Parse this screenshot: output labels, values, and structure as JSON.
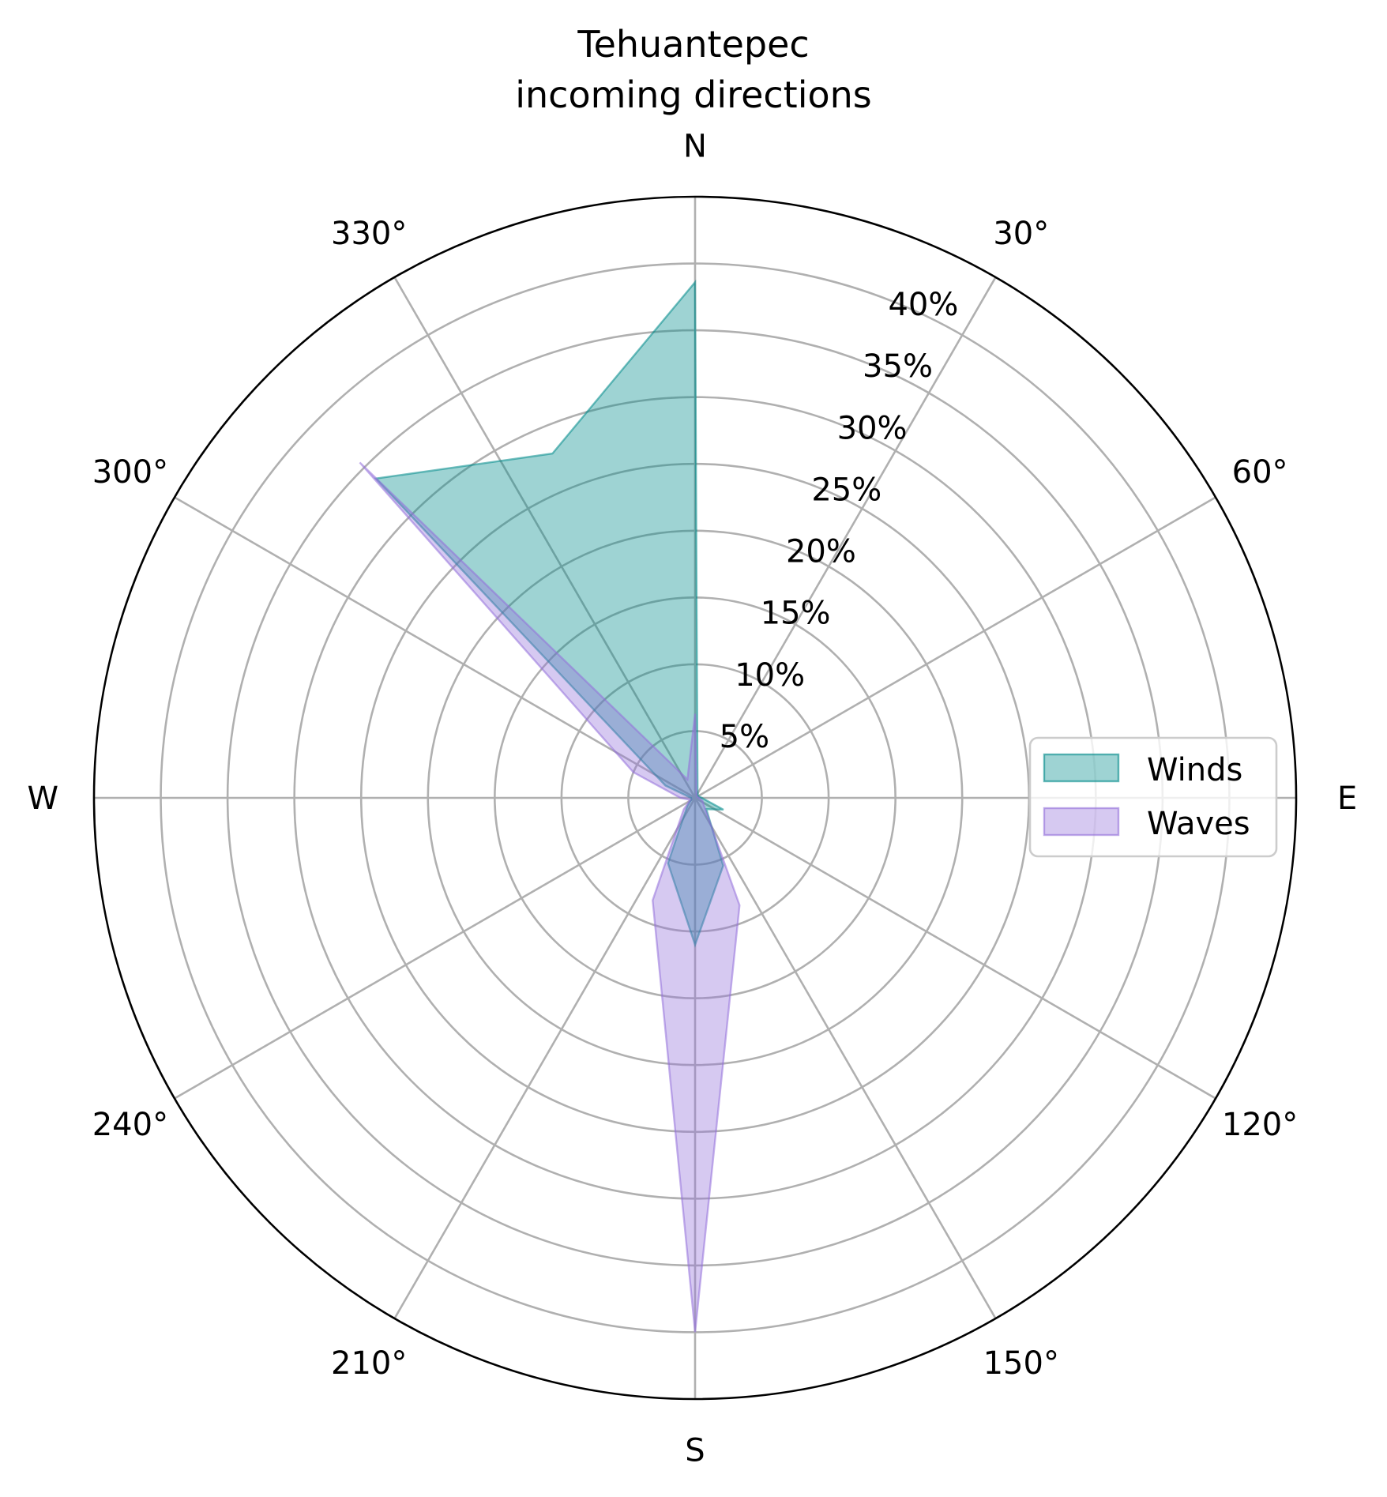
{
  "chart_data": {
    "type": "polar-area",
    "title_lines": [
      "Tehuantepec",
      "incoming directions"
    ],
    "direction": "clockwise",
    "zero_location": "N",
    "rlim": [
      0,
      45
    ],
    "radial_ticks": [
      5,
      10,
      15,
      20,
      25,
      30,
      35,
      40
    ],
    "radial_tick_labels": [
      "5%",
      "10%",
      "15%",
      "20%",
      "25%",
      "30%",
      "35%",
      "40%"
    ],
    "radial_label_angle": 22.5,
    "angular_ticks": [
      0,
      30,
      60,
      90,
      120,
      150,
      180,
      210,
      240,
      270,
      300,
      330
    ],
    "angular_tick_labels": [
      "N",
      "30°",
      "60°",
      "E",
      "120°",
      "150°",
      "S",
      "210°",
      "240°",
      "W",
      "300°",
      "330°"
    ],
    "grid": true,
    "legend_position": "center-right",
    "series": [
      {
        "name": "Winds",
        "color": "#008b8b",
        "angles": [
          0,
          22.5,
          45,
          67.5,
          90,
          112.5,
          135,
          157.5,
          180,
          202.5,
          225,
          247.5,
          270,
          292.5,
          315,
          337.5
        ],
        "values": [
          38.6,
          0.5,
          0.3,
          0.3,
          0.5,
          2.3,
          1.2,
          5.5,
          11.0,
          5.3,
          0.8,
          0.3,
          0.3,
          2.4,
          33.8,
          27.9
        ]
      },
      {
        "name": "Waves",
        "color": "#9370db",
        "angles": [
          0,
          22.5,
          45,
          67.5,
          90,
          112.5,
          135,
          157.5,
          180,
          202.5,
          225,
          247.5,
          270,
          292.5,
          315,
          337.5
        ],
        "values": [
          6.3,
          0.3,
          0.2,
          0.2,
          0.3,
          0.6,
          1.0,
          8.7,
          40.0,
          8.3,
          1.2,
          0.4,
          1.1,
          5.0,
          35.5,
          1.5
        ]
      }
    ]
  }
}
